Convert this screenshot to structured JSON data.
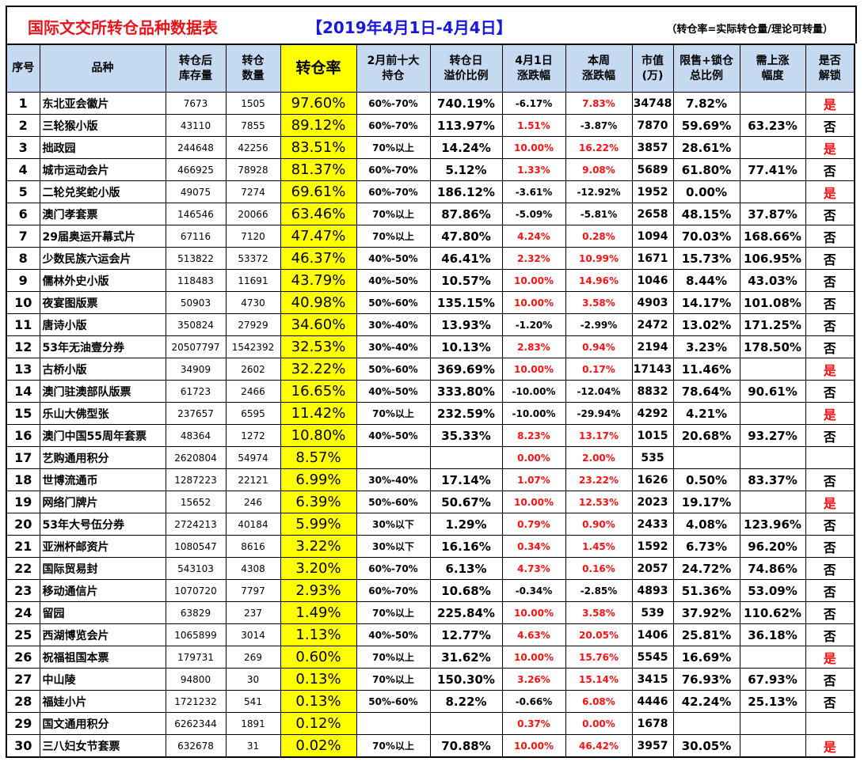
{
  "header": {
    "title": "国际文交所转仓品种数据表",
    "date_range": "【2019年4月1日-4月4日】",
    "note": "（转仓率=实际转仓量/理论可转量）"
  },
  "columns": [
    "序号",
    "品种",
    "转仓后\n库存量",
    "转仓\n数量",
    "转仓率",
    "2月前十大\n持仓",
    "转仓日\n溢价比例",
    "4月1日\n涨跌幅",
    "本周\n涨跌幅",
    "市值\n(万)",
    "限售+锁仓\n总比例",
    "需上涨\n幅度",
    "是否\n解锁"
  ],
  "rows": [
    [
      "1",
      "东北亚会徽片",
      "7673",
      "1505",
      "97.60%",
      "60%-70%",
      "740.19%",
      "-6.17%",
      "7.83%",
      "34748",
      "7.82%",
      "",
      "是"
    ],
    [
      "2",
      "三轮猴小版",
      "43110",
      "7855",
      "89.12%",
      "60%-70%",
      "113.97%",
      "1.51%",
      "-3.87%",
      "7870",
      "59.69%",
      "63.23%",
      "否"
    ],
    [
      "3",
      "拙政园",
      "244648",
      "42256",
      "83.51%",
      "70%以上",
      "14.24%",
      "10.00%",
      "16.22%",
      "3857",
      "28.61%",
      "",
      "是"
    ],
    [
      "4",
      "城市运动会片",
      "466925",
      "78928",
      "81.37%",
      "60%-70%",
      "5.12%",
      "1.33%",
      "9.08%",
      "5689",
      "61.80%",
      "77.41%",
      "否"
    ],
    [
      "5",
      "二轮兑奖蛇小版",
      "49075",
      "7274",
      "69.61%",
      "60%-70%",
      "186.12%",
      "-3.61%",
      "-12.92%",
      "1952",
      "0.00%",
      "",
      "是"
    ],
    [
      "6",
      "澳门孝套票",
      "146546",
      "20066",
      "63.46%",
      "70%以上",
      "87.86%",
      "-5.09%",
      "-5.81%",
      "2658",
      "48.15%",
      "37.87%",
      "否"
    ],
    [
      "7",
      "29届奥运开幕式片",
      "67116",
      "7120",
      "47.47%",
      "70%以上",
      "47.80%",
      "4.24%",
      "0.28%",
      "1094",
      "70.03%",
      "168.66%",
      "否"
    ],
    [
      "8",
      "少数民族六运会片",
      "513822",
      "53372",
      "46.37%",
      "40%-50%",
      "46.41%",
      "2.32%",
      "10.99%",
      "1671",
      "15.73%",
      "106.95%",
      "否"
    ],
    [
      "9",
      "儒林外史小版",
      "118483",
      "11691",
      "43.79%",
      "40%-50%",
      "10.57%",
      "10.00%",
      "14.96%",
      "1046",
      "8.44%",
      "43.03%",
      "否"
    ],
    [
      "10",
      "夜宴图版票",
      "50903",
      "4730",
      "40.98%",
      "50%-60%",
      "135.15%",
      "10.00%",
      "3.58%",
      "4903",
      "14.17%",
      "101.08%",
      "否"
    ],
    [
      "11",
      "唐诗小版",
      "350824",
      "27929",
      "34.60%",
      "30%-40%",
      "13.93%",
      "-1.20%",
      "-2.99%",
      "2472",
      "13.02%",
      "171.25%",
      "否"
    ],
    [
      "12",
      "53年无油壹分券",
      "20507797",
      "1542392",
      "32.53%",
      "30%-40%",
      "10.13%",
      "2.83%",
      "0.94%",
      "2194",
      "3.23%",
      "178.50%",
      "否"
    ],
    [
      "13",
      "古桥小版",
      "34909",
      "2602",
      "32.22%",
      "50%-60%",
      "369.69%",
      "10.00%",
      "0.17%",
      "17143",
      "11.46%",
      "",
      "是"
    ],
    [
      "14",
      "澳门驻澳部队版票",
      "61723",
      "2466",
      "16.65%",
      "40%-50%",
      "333.80%",
      "-10.00%",
      "-12.04%",
      "8832",
      "78.64%",
      "90.61%",
      "否"
    ],
    [
      "15",
      "乐山大佛型张",
      "237657",
      "6595",
      "11.42%",
      "70%以上",
      "232.59%",
      "-10.00%",
      "-29.94%",
      "4292",
      "4.21%",
      "",
      "是"
    ],
    [
      "16",
      "澳门中国55周年套票",
      "48364",
      "1272",
      "10.80%",
      "40%-50%",
      "35.33%",
      "8.23%",
      "13.17%",
      "1015",
      "20.68%",
      "93.27%",
      "否"
    ],
    [
      "17",
      "艺购通用积分",
      "2620804",
      "54974",
      "8.57%",
      "",
      "",
      "0.00%",
      "2.00%",
      "535",
      "",
      "",
      ""
    ],
    [
      "18",
      "世博流通币",
      "1287223",
      "22121",
      "6.99%",
      "30%-40%",
      "17.14%",
      "1.07%",
      "23.22%",
      "1626",
      "0.50%",
      "83.37%",
      "否"
    ],
    [
      "19",
      "网络门牌片",
      "15652",
      "246",
      "6.39%",
      "50%-60%",
      "50.67%",
      "10.00%",
      "12.53%",
      "2023",
      "19.17%",
      "",
      "是"
    ],
    [
      "20",
      "53年大号伍分券",
      "2724213",
      "40184",
      "5.99%",
      "30%以下",
      "1.29%",
      "0.79%",
      "0.90%",
      "2433",
      "4.08%",
      "123.96%",
      "否"
    ],
    [
      "21",
      "亚洲杯邮资片",
      "1080547",
      "8616",
      "3.22%",
      "30%以下",
      "16.16%",
      "0.34%",
      "1.45%",
      "1592",
      "6.73%",
      "96.20%",
      "否"
    ],
    [
      "22",
      "国际贸易封",
      "543103",
      "4308",
      "3.20%",
      "60%-70%",
      "6.13%",
      "4.73%",
      "0.16%",
      "2057",
      "24.72%",
      "74.86%",
      "否"
    ],
    [
      "23",
      "移动通信片",
      "1070720",
      "7797",
      "2.93%",
      "60%-70%",
      "10.68%",
      "-0.34%",
      "-2.85%",
      "4893",
      "51.36%",
      "53.09%",
      "否"
    ],
    [
      "24",
      "留园",
      "63829",
      "237",
      "1.49%",
      "70%以上",
      "225.84%",
      "10.00%",
      "3.58%",
      "539",
      "37.92%",
      "110.62%",
      "否"
    ],
    [
      "25",
      "西湖博览会片",
      "1065899",
      "3014",
      "1.13%",
      "40%-50%",
      "12.77%",
      "4.63%",
      "20.05%",
      "1406",
      "25.81%",
      "36.18%",
      "否"
    ],
    [
      "26",
      "祝福祖国本票",
      "179731",
      "269",
      "0.60%",
      "70%以上",
      "31.62%",
      "10.00%",
      "15.76%",
      "5545",
      "16.69%",
      "",
      "是"
    ],
    [
      "27",
      "中山陵",
      "94800",
      "30",
      "0.13%",
      "70%以上",
      "150.30%",
      "3.26%",
      "15.14%",
      "3415",
      "76.93%",
      "67.93%",
      "否"
    ],
    [
      "28",
      "福娃小片",
      "1721232",
      "541",
      "0.13%",
      "50%-60%",
      "8.22%",
      "-0.66%",
      "6.08%",
      "4446",
      "42.24%",
      "25.13%",
      "否"
    ],
    [
      "29",
      "国文通用积分",
      "6262344",
      "1891",
      "0.12%",
      "",
      "",
      "0.37%",
      "0.00%",
      "1678",
      "",
      "",
      ""
    ],
    [
      "30",
      "三八妇女节套票",
      "632678",
      "31",
      "0.02%",
      "70%以上",
      "70.88%",
      "10.00%",
      "46.42%",
      "3957",
      "30.05%",
      "",
      "是"
    ]
  ],
  "colors": {
    "title": "#e8141b",
    "date": "#1818e0",
    "header_bg": "#c5d9f1",
    "rate_bg": "#ffff00",
    "positive": "#ff1010",
    "unlocked": "#ff1010"
  }
}
